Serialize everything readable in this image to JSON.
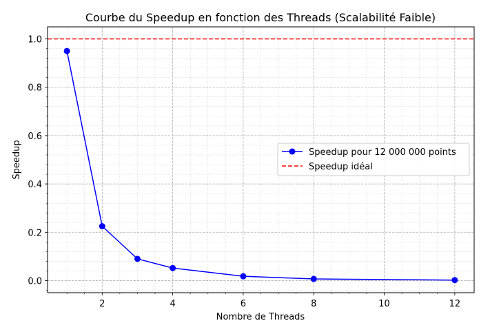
{
  "chart_data": {
    "type": "line",
    "title": "Courbe du Speedup en fonction des Threads (Scalabilité Faible)",
    "xlabel": "Nombre de Threads",
    "ylabel": "Speedup",
    "xlim": [
      0.45,
      12.55
    ],
    "ylim": [
      -0.05,
      1.05
    ],
    "xticks": [
      2,
      4,
      6,
      8,
      10,
      12
    ],
    "xtick_labels": [
      "2",
      "4",
      "6",
      "8",
      "10",
      "12"
    ],
    "yticks": [
      0.0,
      0.2,
      0.4,
      0.6,
      0.8,
      1.0
    ],
    "ytick_labels": [
      "0.0",
      "0.2",
      "0.4",
      "0.6",
      "0.8",
      "1.0"
    ],
    "grid": true,
    "legend_position": "center-right",
    "series": [
      {
        "name": "Speedup pour 12 000 000 points",
        "style": "solid-line-circle-markers",
        "color": "#0000ff",
        "x": [
          1,
          2,
          3,
          4,
          6,
          8,
          12
        ],
        "y": [
          0.95,
          0.225,
          0.09,
          0.052,
          0.018,
          0.007,
          0.002
        ]
      },
      {
        "name": "Speedup idéal",
        "style": "dashed-horizontal-line",
        "color": "#ff0000",
        "y": 1.0
      }
    ]
  }
}
